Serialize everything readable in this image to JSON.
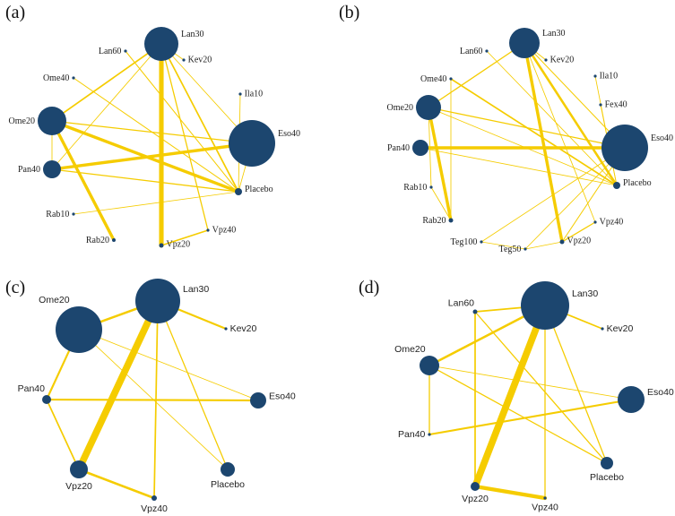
{
  "colors": {
    "edge": "#f5cc00",
    "node": "#1c466f",
    "text": "#222222"
  },
  "panels": [
    {
      "label": "(a)",
      "font": "serif",
      "nodes": [
        {
          "id": "Lan30",
          "label": "Lan30",
          "size": 38,
          "label_pos": "right"
        },
        {
          "id": "Lan60",
          "label": "Lan60",
          "size": 2,
          "label_pos": "left"
        },
        {
          "id": "Kev20",
          "label": "Kev20",
          "size": 2,
          "label_pos": "right"
        },
        {
          "id": "Ome40",
          "label": "Ome40",
          "size": 2,
          "label_pos": "left"
        },
        {
          "id": "Ila10",
          "label": "Ila10",
          "size": 2,
          "label_pos": "right"
        },
        {
          "id": "Ome20",
          "label": "Ome20",
          "size": 32,
          "label_pos": "left"
        },
        {
          "id": "Eso40",
          "label": "Eso40",
          "size": 52,
          "label_pos": "right"
        },
        {
          "id": "Pan40",
          "label": "Pan40",
          "size": 20,
          "label_pos": "left"
        },
        {
          "id": "Placebo",
          "label": "Placebo",
          "size": 8,
          "label_pos": "right"
        },
        {
          "id": "Rab10",
          "label": "Rab10",
          "size": 2,
          "label_pos": "left"
        },
        {
          "id": "Rab20",
          "label": "Rab20",
          "size": 4,
          "label_pos": "left"
        },
        {
          "id": "Vpz40",
          "label": "Vpz40",
          "size": 3,
          "label_pos": "right"
        },
        {
          "id": "Vpz20",
          "label": "Vpz20",
          "size": 5,
          "label_pos": "right"
        }
      ],
      "edges": [
        {
          "from": "Lan30",
          "to": "Vpz20",
          "weight": 6
        },
        {
          "from": "Lan30",
          "to": "Ome20",
          "weight": 2
        },
        {
          "from": "Lan30",
          "to": "Placebo",
          "weight": 2
        },
        {
          "from": "Lan30",
          "to": "Vpz40",
          "weight": 1.5
        },
        {
          "from": "Lan30",
          "to": "Pan40",
          "weight": 1
        },
        {
          "from": "Lan30",
          "to": "Eso40",
          "weight": 1
        },
        {
          "from": "Lan30",
          "to": "Kev20",
          "weight": 1
        },
        {
          "from": "Lan60",
          "to": "Placebo",
          "weight": 1.2
        },
        {
          "from": "Ome40",
          "to": "Placebo",
          "weight": 1.2
        },
        {
          "from": "Ome20",
          "to": "Placebo",
          "weight": 4
        },
        {
          "from": "Ome20",
          "to": "Rab20",
          "weight": 4
        },
        {
          "from": "Ome20",
          "to": "Eso40",
          "weight": 1.5
        },
        {
          "from": "Ome20",
          "to": "Pan40",
          "weight": 1
        },
        {
          "from": "Pan40",
          "to": "Eso40",
          "weight": 4
        },
        {
          "from": "Pan40",
          "to": "Placebo",
          "weight": 1.5
        },
        {
          "from": "Eso40",
          "to": "Placebo",
          "weight": 1
        },
        {
          "from": "Ila10",
          "to": "Placebo",
          "weight": 1
        },
        {
          "from": "Rab10",
          "to": "Placebo",
          "weight": 1
        },
        {
          "from": "Vpz20",
          "to": "Vpz40",
          "weight": 2
        }
      ]
    },
    {
      "label": "(b)",
      "font": "serif",
      "nodes": [
        {
          "id": "Lan30",
          "label": "Lan30",
          "size": 34,
          "label_pos": "right"
        },
        {
          "id": "Lan60",
          "label": "Lan60",
          "size": 2,
          "label_pos": "left"
        },
        {
          "id": "Kev20",
          "label": "Kev20",
          "size": 2,
          "label_pos": "right"
        },
        {
          "id": "Ome40",
          "label": "Ome40",
          "size": 2,
          "label_pos": "left"
        },
        {
          "id": "Ila10",
          "label": "Ila10",
          "size": 2,
          "label_pos": "right"
        },
        {
          "id": "Ome20",
          "label": "Ome20",
          "size": 28,
          "label_pos": "left"
        },
        {
          "id": "Fex40",
          "label": "Fex40",
          "size": 2,
          "label_pos": "right"
        },
        {
          "id": "Eso40",
          "label": "Eso40",
          "size": 52,
          "label_pos": "right"
        },
        {
          "id": "Pan40",
          "label": "Pan40",
          "size": 18,
          "label_pos": "left"
        },
        {
          "id": "Placebo",
          "label": "Placebo",
          "size": 8,
          "label_pos": "right"
        },
        {
          "id": "Rab10",
          "label": "Rab10",
          "size": 2,
          "label_pos": "left"
        },
        {
          "id": "Rab20",
          "label": "Rab20",
          "size": 5,
          "label_pos": "left"
        },
        {
          "id": "Vpz40",
          "label": "Vpz40",
          "size": 3,
          "label_pos": "right"
        },
        {
          "id": "Teg100",
          "label": "Teg100",
          "size": 2,
          "label_pos": "left"
        },
        {
          "id": "Teg50",
          "label": "Teg50",
          "size": 2,
          "label_pos": "left"
        },
        {
          "id": "Vpz20",
          "label": "Vpz20",
          "size": 5,
          "label_pos": "right"
        }
      ],
      "edges": [
        {
          "from": "Lan30",
          "to": "Vpz20",
          "weight": 4
        },
        {
          "from": "Lan30",
          "to": "Placebo",
          "weight": 3
        },
        {
          "from": "Lan30",
          "to": "Ome20",
          "weight": 1.5
        },
        {
          "from": "Lan30",
          "to": "Eso40",
          "weight": 1.2
        },
        {
          "from": "Lan30",
          "to": "Kev20",
          "weight": 1
        },
        {
          "from": "Lan30",
          "to": "Vpz40",
          "weight": 1
        },
        {
          "from": "Lan60",
          "to": "Placebo",
          "weight": 1
        },
        {
          "from": "Ome40",
          "to": "Placebo",
          "weight": 2
        },
        {
          "from": "Ome40",
          "to": "Rab20",
          "weight": 1
        },
        {
          "from": "Ome20",
          "to": "Rab20",
          "weight": 4
        },
        {
          "from": "Ome20",
          "to": "Eso40",
          "weight": 1.5
        },
        {
          "from": "Ome20",
          "to": "Placebo",
          "weight": 1
        },
        {
          "from": "Pan40",
          "to": "Eso40",
          "weight": 4
        },
        {
          "from": "Pan40",
          "to": "Placebo",
          "weight": 1
        },
        {
          "from": "Eso40",
          "to": "Teg100",
          "weight": 1
        },
        {
          "from": "Eso40",
          "to": "Teg50",
          "weight": 1
        },
        {
          "from": "Eso40",
          "to": "Vpz20",
          "weight": 1.2
        },
        {
          "from": "Ila10",
          "to": "Placebo",
          "weight": 1
        },
        {
          "from": "Fex40",
          "to": "Placebo",
          "weight": 1
        },
        {
          "from": "Rab10",
          "to": "Rab20",
          "weight": 1
        },
        {
          "from": "Rab10",
          "to": "Ome20",
          "weight": 1
        },
        {
          "from": "Teg100",
          "to": "Teg50",
          "weight": 1
        },
        {
          "from": "Teg50",
          "to": "Vpz20",
          "weight": 1
        },
        {
          "from": "Vpz20",
          "to": "Vpz40",
          "weight": 1.5
        }
      ]
    },
    {
      "label": "(c)",
      "font": "sans",
      "nodes": [
        {
          "id": "Lan30",
          "label": "Lan30",
          "size": 50,
          "label_pos": "right"
        },
        {
          "id": "Ome20",
          "label": "Ome20",
          "size": 52,
          "label_pos": "left-top"
        },
        {
          "id": "Kev20",
          "label": "Kev20",
          "size": 3,
          "label_pos": "right"
        },
        {
          "id": "Pan40",
          "label": "Pan40",
          "size": 10,
          "label_pos": "left-top"
        },
        {
          "id": "Eso40",
          "label": "Eso40",
          "size": 18,
          "label_pos": "right"
        },
        {
          "id": "Vpz20",
          "label": "Vpz20",
          "size": 20,
          "label_pos": "below"
        },
        {
          "id": "Placebo",
          "label": "Placebo",
          "size": 16,
          "label_pos": "below"
        },
        {
          "id": "Vpz40",
          "label": "Vpz40",
          "size": 6,
          "label_pos": "below"
        }
      ],
      "edges": [
        {
          "from": "Lan30",
          "to": "Vpz20",
          "weight": 9
        },
        {
          "from": "Lan30",
          "to": "Ome20",
          "weight": 3
        },
        {
          "from": "Lan30",
          "to": "Kev20",
          "weight": 2.5
        },
        {
          "from": "Lan30",
          "to": "Vpz40",
          "weight": 2
        },
        {
          "from": "Lan30",
          "to": "Placebo",
          "weight": 1.5
        },
        {
          "from": "Ome20",
          "to": "Pan40",
          "weight": 2.5
        },
        {
          "from": "Ome20",
          "to": "Eso40",
          "weight": 1
        },
        {
          "from": "Ome20",
          "to": "Placebo",
          "weight": 1
        },
        {
          "from": "Pan40",
          "to": "Eso40",
          "weight": 2.5
        },
        {
          "from": "Pan40",
          "to": "Vpz20",
          "weight": 2
        },
        {
          "from": "Vpz20",
          "to": "Vpz40",
          "weight": 3
        }
      ]
    },
    {
      "label": "(d)",
      "font": "sans",
      "nodes": [
        {
          "id": "Lan30",
          "label": "Lan30",
          "size": 54,
          "label_pos": "right"
        },
        {
          "id": "Lan60",
          "label": "Lan60",
          "size": 5,
          "label_pos": "left-top"
        },
        {
          "id": "Kev20",
          "label": "Kev20",
          "size": 3,
          "label_pos": "right"
        },
        {
          "id": "Ome20",
          "label": "Ome20",
          "size": 22,
          "label_pos": "left-top"
        },
        {
          "id": "Eso40",
          "label": "Eso40",
          "size": 30,
          "label_pos": "right"
        },
        {
          "id": "Pan40",
          "label": "Pan40",
          "size": 3,
          "label_pos": "left"
        },
        {
          "id": "Placebo",
          "label": "Placebo",
          "size": 14,
          "label_pos": "below"
        },
        {
          "id": "Vpz20",
          "label": "Vpz20",
          "size": 10,
          "label_pos": "below"
        },
        {
          "id": "Vpz40",
          "label": "Vpz40",
          "size": 3,
          "label_pos": "below"
        }
      ],
      "edges": [
        {
          "from": "Lan30",
          "to": "Vpz20",
          "weight": 9
        },
        {
          "from": "Lan30",
          "to": "Ome20",
          "weight": 3
        },
        {
          "from": "Lan30",
          "to": "Lan60",
          "weight": 2
        },
        {
          "from": "Lan30",
          "to": "Kev20",
          "weight": 2
        },
        {
          "from": "Lan30",
          "to": "Placebo",
          "weight": 1.5
        },
        {
          "from": "Lan30",
          "to": "Vpz40",
          "weight": 1.5
        },
        {
          "from": "Lan60",
          "to": "Vpz20",
          "weight": 2
        },
        {
          "from": "Lan60",
          "to": "Placebo",
          "weight": 1.5
        },
        {
          "from": "Ome20",
          "to": "Eso40",
          "weight": 1
        },
        {
          "from": "Ome20",
          "to": "Pan40",
          "weight": 1.5
        },
        {
          "from": "Ome20",
          "to": "Placebo",
          "weight": 1.5
        },
        {
          "from": "Pan40",
          "to": "Eso40",
          "weight": 2.5
        },
        {
          "from": "Vpz20",
          "to": "Vpz40",
          "weight": 5
        }
      ]
    }
  ]
}
